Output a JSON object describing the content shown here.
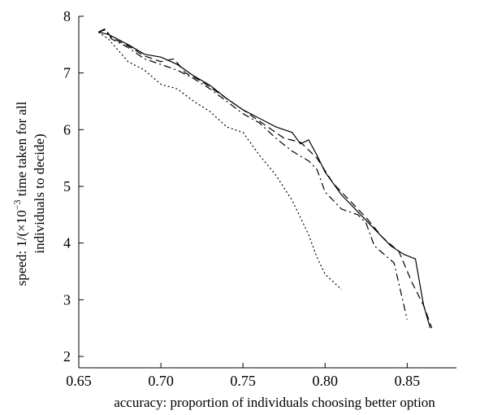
{
  "chart_data": {
    "type": "line",
    "title": "",
    "xlabel": "accuracy: proportion of individuals choosing better option",
    "ylabel_line1": "speed: 1/(×10",
    "ylabel_exp": "−3",
    "ylabel_line1_rest": " time taken for all",
    "ylabel_line2": "individuals to decide)",
    "xlim": [
      0.65,
      0.88
    ],
    "ylim": [
      1.8,
      8.0
    ],
    "xticks": [
      0.65,
      0.7,
      0.75,
      0.8,
      0.85
    ],
    "xtick_labels": [
      "0.65",
      "0.70",
      "0.75",
      "0.80",
      "0.85"
    ],
    "yticks": [
      2,
      3,
      4,
      5,
      6,
      7,
      8
    ],
    "ytick_labels": [
      "2",
      "3",
      "4",
      "5",
      "6",
      "7",
      "8"
    ],
    "grid": false,
    "series": [
      {
        "dash": "solid",
        "points": [
          [
            0.662,
            7.72
          ],
          [
            0.668,
            7.68
          ],
          [
            0.68,
            7.5
          ],
          [
            0.69,
            7.33
          ],
          [
            0.7,
            7.28
          ],
          [
            0.71,
            7.15
          ],
          [
            0.72,
            6.95
          ],
          [
            0.73,
            6.78
          ],
          [
            0.74,
            6.55
          ],
          [
            0.75,
            6.35
          ],
          [
            0.76,
            6.2
          ],
          [
            0.77,
            6.05
          ],
          [
            0.78,
            5.95
          ],
          [
            0.785,
            5.75
          ],
          [
            0.79,
            5.82
          ],
          [
            0.795,
            5.55
          ],
          [
            0.8,
            5.25
          ],
          [
            0.81,
            4.85
          ],
          [
            0.82,
            4.55
          ],
          [
            0.83,
            4.25
          ],
          [
            0.84,
            3.95
          ],
          [
            0.848,
            3.8
          ],
          [
            0.855,
            3.72
          ],
          [
            0.86,
            2.9
          ],
          [
            0.864,
            2.5
          ]
        ]
      },
      {
        "dash": "dashed",
        "points": [
          [
            0.662,
            7.72
          ],
          [
            0.666,
            7.78
          ],
          [
            0.67,
            7.62
          ],
          [
            0.68,
            7.48
          ],
          [
            0.69,
            7.3
          ],
          [
            0.7,
            7.2
          ],
          [
            0.708,
            7.25
          ],
          [
            0.715,
            7.0
          ],
          [
            0.725,
            6.85
          ],
          [
            0.735,
            6.65
          ],
          [
            0.745,
            6.45
          ],
          [
            0.755,
            6.25
          ],
          [
            0.765,
            6.05
          ],
          [
            0.775,
            5.85
          ],
          [
            0.785,
            5.78
          ],
          [
            0.795,
            5.5
          ],
          [
            0.805,
            5.05
          ],
          [
            0.815,
            4.75
          ],
          [
            0.825,
            4.45
          ],
          [
            0.835,
            4.1
          ],
          [
            0.845,
            3.85
          ],
          [
            0.853,
            3.3
          ],
          [
            0.86,
            2.9
          ],
          [
            0.865,
            2.5
          ]
        ]
      },
      {
        "dash": "dashdot",
        "points": [
          [
            0.662,
            7.72
          ],
          [
            0.666,
            7.76
          ],
          [
            0.67,
            7.6
          ],
          [
            0.68,
            7.45
          ],
          [
            0.69,
            7.25
          ],
          [
            0.7,
            7.15
          ],
          [
            0.71,
            7.05
          ],
          [
            0.72,
            6.9
          ],
          [
            0.73,
            6.72
          ],
          [
            0.74,
            6.5
          ],
          [
            0.75,
            6.28
          ],
          [
            0.76,
            6.12
          ],
          [
            0.77,
            5.85
          ],
          [
            0.78,
            5.62
          ],
          [
            0.79,
            5.45
          ],
          [
            0.795,
            5.3
          ],
          [
            0.8,
            4.9
          ],
          [
            0.81,
            4.6
          ],
          [
            0.82,
            4.5
          ],
          [
            0.825,
            4.35
          ],
          [
            0.83,
            3.95
          ],
          [
            0.842,
            3.65
          ],
          [
            0.85,
            2.65
          ]
        ]
      },
      {
        "dash": "dotted",
        "points": [
          [
            0.662,
            7.72
          ],
          [
            0.668,
            7.6
          ],
          [
            0.68,
            7.2
          ],
          [
            0.69,
            7.05
          ],
          [
            0.7,
            6.8
          ],
          [
            0.71,
            6.72
          ],
          [
            0.72,
            6.5
          ],
          [
            0.73,
            6.32
          ],
          [
            0.74,
            6.05
          ],
          [
            0.75,
            5.95
          ],
          [
            0.76,
            5.55
          ],
          [
            0.77,
            5.2
          ],
          [
            0.78,
            4.75
          ],
          [
            0.79,
            4.15
          ],
          [
            0.795,
            3.75
          ],
          [
            0.8,
            3.45
          ],
          [
            0.81,
            3.18
          ]
        ]
      }
    ]
  }
}
